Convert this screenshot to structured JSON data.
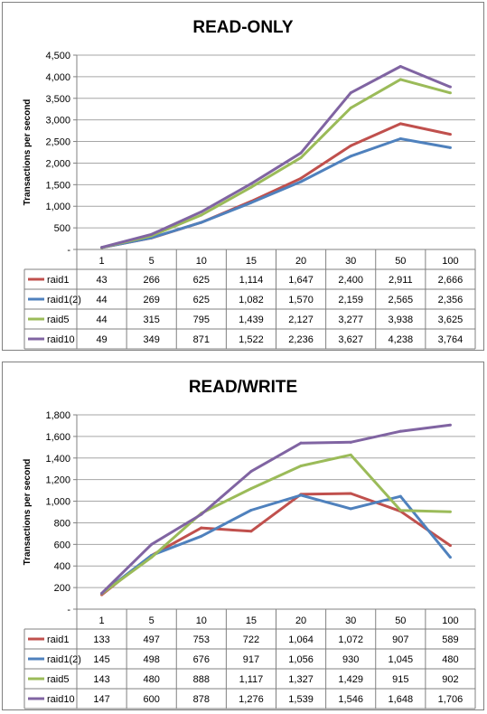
{
  "chart_data": [
    {
      "type": "line",
      "title": "READ-ONLY",
      "xlabel": "",
      "ylabel": "Transactions  per second",
      "ylim": [
        0,
        4500
      ],
      "y_step": 500,
      "y_ticks": [
        "-",
        "500",
        "1,000",
        "1,500",
        "2,000",
        "2,500",
        "3,000",
        "3,500",
        "4,000",
        "4,500"
      ],
      "grid": true,
      "legend": "data-table",
      "categories": [
        "1",
        "5",
        "10",
        "15",
        "20",
        "30",
        "50",
        "100"
      ],
      "series": [
        {
          "name": "raid1",
          "color": "#C0504D",
          "values": [
            43,
            266,
            625,
            1114,
            1647,
            2400,
            2911,
            2666
          ],
          "labels": [
            "43",
            "266",
            "625",
            "1,114",
            "1,647",
            "2,400",
            "2,911",
            "2,666"
          ]
        },
        {
          "name": "raid1(2)",
          "color": "#4F81BD",
          "values": [
            44,
            269,
            625,
            1082,
            1570,
            2159,
            2565,
            2356
          ],
          "labels": [
            "44",
            "269",
            "625",
            "1,082",
            "1,570",
            "2,159",
            "2,565",
            "2,356"
          ]
        },
        {
          "name": "raid5",
          "color": "#9BBB59",
          "values": [
            44,
            315,
            795,
            1439,
            2127,
            3277,
            3938,
            3625
          ],
          "labels": [
            "44",
            "315",
            "795",
            "1,439",
            "2,127",
            "3,277",
            "3,938",
            "3,625"
          ]
        },
        {
          "name": "raid10",
          "color": "#8064A2",
          "values": [
            49,
            349,
            871,
            1522,
            2236,
            3627,
            4238,
            3764
          ],
          "labels": [
            "49",
            "349",
            "871",
            "1,522",
            "2,236",
            "3,627",
            "4,238",
            "3,764"
          ]
        }
      ]
    },
    {
      "type": "line",
      "title": "READ/WRITE",
      "xlabel": "",
      "ylabel": "Transactions  per second",
      "ylim": [
        0,
        1800
      ],
      "y_step": 200,
      "y_ticks": [
        "-",
        "200",
        "400",
        "600",
        "800",
        "1,000",
        "1,200",
        "1,400",
        "1,600",
        "1,800"
      ],
      "grid": true,
      "legend": "data-table",
      "categories": [
        "1",
        "5",
        "10",
        "15",
        "20",
        "30",
        "50",
        "100"
      ],
      "series": [
        {
          "name": "raid1",
          "color": "#C0504D",
          "values": [
            133,
            497,
            753,
            722,
            1064,
            1072,
            907,
            589
          ],
          "labels": [
            "133",
            "497",
            "753",
            "722",
            "1,064",
            "1,072",
            "907",
            "589"
          ]
        },
        {
          "name": "raid1(2)",
          "color": "#4F81BD",
          "values": [
            145,
            498,
            676,
            917,
            1056,
            930,
            1045,
            480
          ],
          "labels": [
            "145",
            "498",
            "676",
            "917",
            "1,056",
            "930",
            "1,045",
            "480"
          ]
        },
        {
          "name": "raid5",
          "color": "#9BBB59",
          "values": [
            143,
            480,
            888,
            1117,
            1327,
            1429,
            915,
            902
          ],
          "labels": [
            "143",
            "480",
            "888",
            "1,117",
            "1,327",
            "1,429",
            "915",
            "902"
          ]
        },
        {
          "name": "raid10",
          "color": "#8064A2",
          "values": [
            147,
            600,
            878,
            1276,
            1539,
            1546,
            1648,
            1706
          ],
          "labels": [
            "147",
            "600",
            "878",
            "1,276",
            "1,539",
            "1,546",
            "1,648",
            "1,706"
          ]
        }
      ]
    }
  ]
}
